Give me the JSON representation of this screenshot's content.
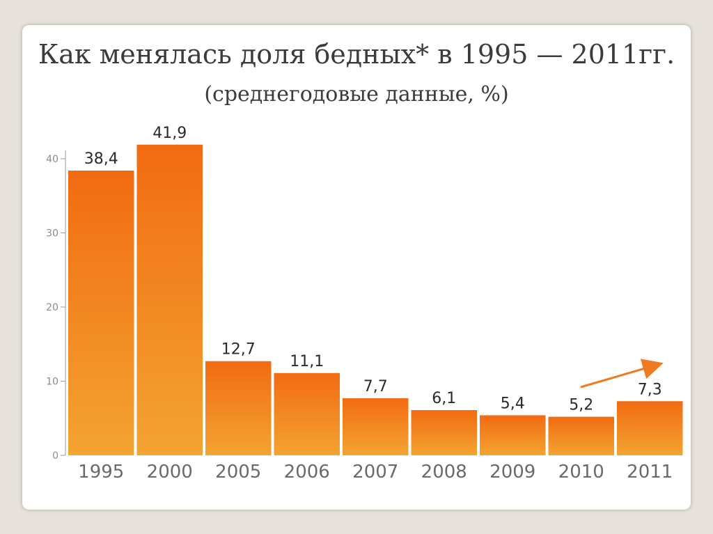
{
  "chart_data": {
    "type": "bar",
    "title": "Как менялась доля бедных* в 1995 — 2011гг.",
    "subtitle": "(среднегодовые данные, %)",
    "categories": [
      "1995",
      "2000",
      "2005",
      "2006",
      "2007",
      "2008",
      "2009",
      "2010",
      "2011"
    ],
    "values": [
      38.4,
      41.9,
      12.7,
      11.1,
      7.7,
      6.1,
      5.4,
      5.2,
      7.3
    ],
    "value_labels": [
      "38,4",
      "41,9",
      "12,7",
      "11,1",
      "7,7",
      "6,1",
      "5,4",
      "5,2",
      "7,3"
    ],
    "yticks": [
      "0",
      "10",
      "20",
      "30",
      "40"
    ],
    "ylim": [
      0,
      43
    ],
    "xlabel": "",
    "ylabel": "",
    "grid": false,
    "legend": "none",
    "colors": {
      "bar_top": "#f26b12",
      "bar_bottom": "#f3a432",
      "arrow": "#ee7a22"
    },
    "annotation": "upward trend arrow between 2010 and 2011"
  }
}
